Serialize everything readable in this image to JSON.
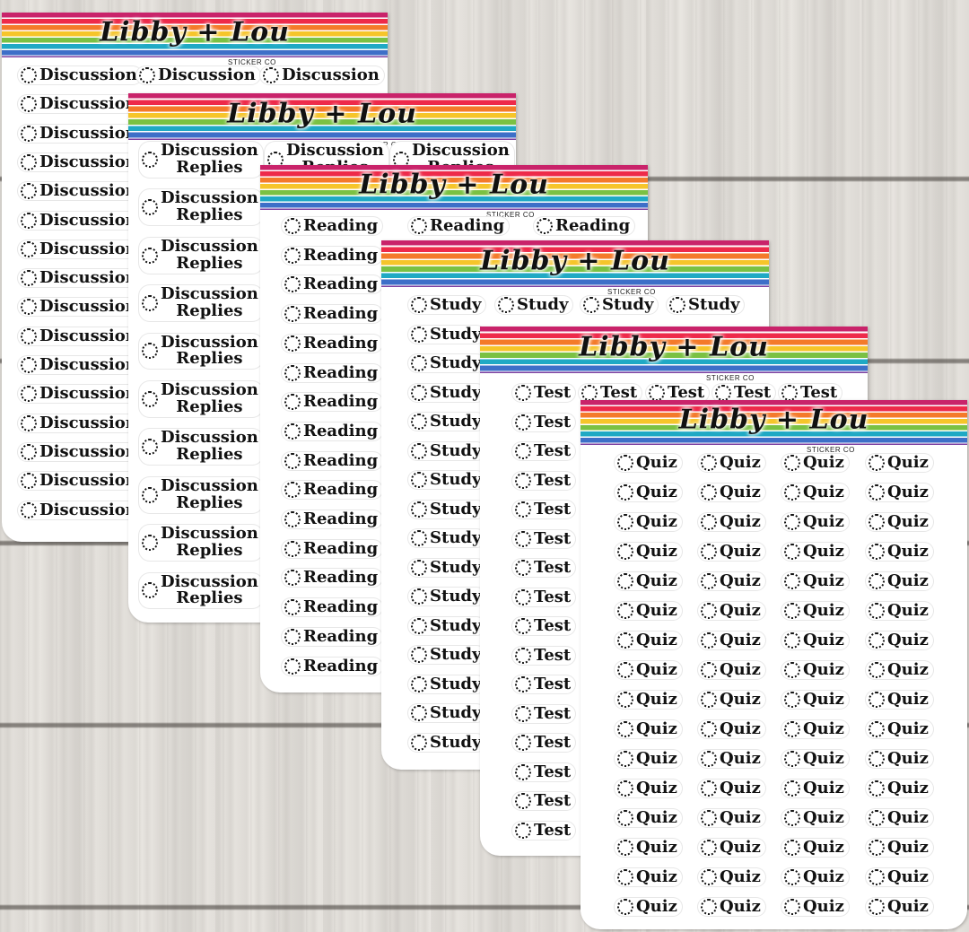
{
  "brand": {
    "logo_text": "Libby + Lou",
    "tagline": "STICKER CO"
  },
  "colors": {
    "stripe_magenta": "#c9236a",
    "stripe_red": "#ee2a4a",
    "stripe_orange": "#f47a2a",
    "stripe_yellow": "#f6c52a",
    "stripe_green": "#7ac143",
    "stripe_teal": "#1fa9c4",
    "stripe_blue": "#3d6fc8",
    "stripe_purple": "#7b3fa0",
    "sheet": "#ffffff",
    "wood": "#e9e6e1"
  },
  "sheets": [
    {
      "id": "discussion",
      "sticker_label": "Discussion"
    },
    {
      "id": "discussion-replies",
      "sticker_label": "Discussion\nReplies"
    },
    {
      "id": "reading",
      "sticker_label": "Reading"
    },
    {
      "id": "study",
      "sticker_label": "Study"
    },
    {
      "id": "test",
      "sticker_label": "Test"
    },
    {
      "id": "quiz",
      "sticker_label": "Quiz"
    }
  ]
}
